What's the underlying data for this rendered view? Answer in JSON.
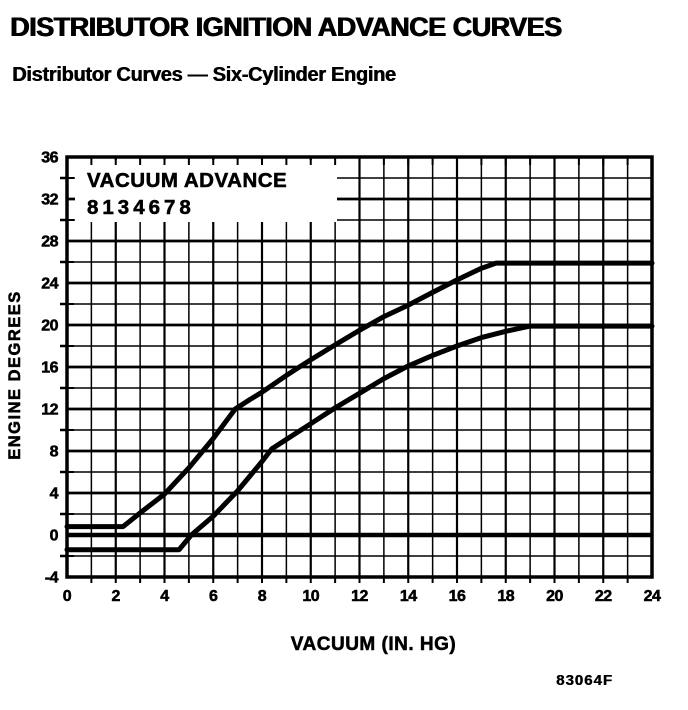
{
  "page": {
    "background": "#ffffff",
    "ink_color": "#000000"
  },
  "header": {
    "title": "DISTRIBUTOR IGNITION ADVANCE CURVES",
    "subtitle": "Distributor Curves — Six-Cylinder Engine"
  },
  "figure_code": "83064F",
  "chart_data": {
    "type": "line",
    "title": "VACUUM ADVANCE",
    "part_number": "8134678",
    "xlabel": "VACUUM (IN. HG)",
    "ylabel": "ENGINE DEGREES",
    "xlim": [
      0,
      24
    ],
    "ylim": [
      -4,
      36
    ],
    "x_ticks": [
      0,
      2,
      4,
      6,
      8,
      10,
      12,
      14,
      16,
      18,
      20,
      22,
      24
    ],
    "y_ticks": [
      36,
      32,
      28,
      24,
      20,
      16,
      12,
      8,
      4,
      0,
      -4
    ],
    "x_minor_step": 1,
    "y_minor_step": 2,
    "grid": true,
    "legend_position": "top-left-inside",
    "series": [
      {
        "name": "upper_limit",
        "points": [
          [
            0,
            0.8
          ],
          [
            2.3,
            0.8
          ],
          [
            3,
            2.1
          ],
          [
            4,
            3.9
          ],
          [
            5,
            6.4
          ],
          [
            6,
            9.2
          ],
          [
            6.9,
            12
          ],
          [
            7.5,
            12.9
          ],
          [
            8,
            13.6
          ],
          [
            9,
            15.2
          ],
          [
            10,
            16.7
          ],
          [
            11,
            18.1
          ],
          [
            12,
            19.5
          ],
          [
            13,
            20.8
          ],
          [
            14,
            21.9
          ],
          [
            15,
            23.1
          ],
          [
            16,
            24.3
          ],
          [
            17,
            25.4
          ],
          [
            17.6,
            25.9
          ],
          [
            24,
            25.9
          ]
        ]
      },
      {
        "name": "lower_limit",
        "points": [
          [
            0,
            -1.4
          ],
          [
            4.6,
            -1.4
          ],
          [
            5.1,
            0
          ],
          [
            6,
            1.8
          ],
          [
            7,
            4.2
          ],
          [
            8,
            7
          ],
          [
            8.4,
            8.2
          ],
          [
            9,
            9.1
          ],
          [
            10,
            10.6
          ],
          [
            11,
            12.1
          ],
          [
            12,
            13.5
          ],
          [
            13,
            14.9
          ],
          [
            14,
            16.1
          ],
          [
            15,
            17.1
          ],
          [
            16,
            18
          ],
          [
            17,
            18.8
          ],
          [
            18,
            19.4
          ],
          [
            19,
            19.9
          ],
          [
            24,
            19.9
          ]
        ]
      }
    ]
  }
}
